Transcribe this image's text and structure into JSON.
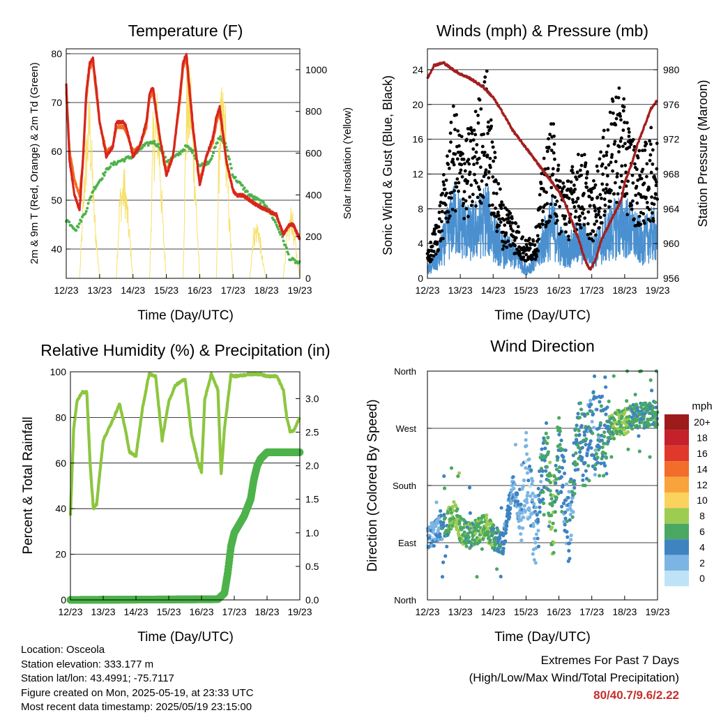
{
  "x_ticks": [
    "12/23",
    "13/23",
    "14/23",
    "15/23",
    "16/23",
    "17/23",
    "18/23",
    "19/23"
  ],
  "x_label": "Time (Day/UTC)",
  "colors": {
    "temp_2m": "#d7261e",
    "temp_9m": "#f26c21",
    "dewpoint": "#4db24a",
    "solar": "#f7e06a",
    "gust": "#000000",
    "wind": "#4a90d0",
    "pressure": "#a31f1f",
    "rh": "#8cc63f",
    "precip": "#4db24a",
    "extremes_text": "#c4302b"
  },
  "panels": {
    "temperature": {
      "title": "Temperature (F)",
      "y_left_label": "2m & 9m T (Red, Orange) & 2m Td (Green)",
      "y_right_label": "Solar Insolation (Yellow)",
      "y_left_ticks": [
        "40",
        "50",
        "60",
        "70",
        "80"
      ],
      "y_right_ticks": [
        "0",
        "200",
        "400",
        "600",
        "800",
        "1000"
      ]
    },
    "winds": {
      "title": "Winds (mph) & Pressure (mb)",
      "y_left_label": "Sonic Wind & Gust (Blue, Black)",
      "y_right_label": "Station Pressure (Maroon)",
      "y_left_ticks": [
        "0",
        "4",
        "8",
        "12",
        "16",
        "20",
        "24"
      ],
      "y_right_ticks": [
        "956",
        "960",
        "964",
        "968",
        "972",
        "976",
        "980"
      ]
    },
    "humidity": {
      "title": "Relative Humidity (%) & Precipitation (in)",
      "y_left_label": "Percent & Total Rainfall",
      "y_left_ticks": [
        "0",
        "20",
        "40",
        "60",
        "80",
        "100"
      ],
      "y_right_ticks": [
        "0.0",
        "0.5",
        "1.0",
        "1.5",
        "2.0",
        "2.5",
        "3.0"
      ]
    },
    "direction": {
      "title": "Wind Direction",
      "y_left_label": "Direction (Colored By Speed)",
      "y_left_ticks": [
        "North",
        "East",
        "South",
        "West",
        "North"
      ],
      "legend_title": "mph",
      "legend_labels": [
        "20+",
        "18",
        "16",
        "14",
        "12",
        "10",
        "8",
        "6",
        "4",
        "2",
        "0"
      ],
      "legend_colors": [
        "#9e1b1b",
        "#c4212a",
        "#e0392b",
        "#f26c2a",
        "#f9a33c",
        "#fbd25e",
        "#9dcc52",
        "#4aa863",
        "#3f83c1",
        "#7cb5e3",
        "#bfe3f6"
      ]
    }
  },
  "info": {
    "location": "Location: Osceola",
    "elevation": "Station elevation: 333.177 m",
    "latlon": "Station lat/lon: 43.4991; -75.7117",
    "created": "Figure created on Mon, 2025-05-19, at 23:33 UTC",
    "recent": "Most recent data timestamp: 2025/05/19 23:15:00"
  },
  "extremes": {
    "title": "Extremes For Past 7 Days",
    "subtitle": "(High/Low/Max Wind/Total Precipitation)",
    "values": "80/40.7/9.6/2.22"
  },
  "chart_data": [
    {
      "type": "line",
      "title": "Temperature (F)",
      "xlabel": "Time (Day/UTC)",
      "ylabel": "2m & 9m T (Red, Orange) & 2m Td (Green)",
      "ylabel_right": "Solar Insolation (Yellow)",
      "xlim": [
        12,
        19
      ],
      "ylim": [
        34,
        81
      ],
      "ylim_right": [
        0,
        1100
      ],
      "series": [
        {
          "name": "2m T",
          "x": [
            12.0,
            12.1,
            12.25,
            12.4,
            12.5,
            12.6,
            12.7,
            12.8,
            12.9,
            13.0,
            13.2,
            13.4,
            13.5,
            13.7,
            13.8,
            14.0,
            14.2,
            14.4,
            14.5,
            14.6,
            14.8,
            15.0,
            15.2,
            15.4,
            15.5,
            15.6,
            15.8,
            16.0,
            16.2,
            16.4,
            16.5,
            16.6,
            16.8,
            17.0,
            17.1,
            17.3,
            17.5,
            17.7,
            18.0,
            18.3,
            18.5,
            18.7,
            18.8,
            19.0
          ],
          "values": [
            74,
            58,
            51,
            48,
            58,
            72,
            78,
            79,
            73,
            66,
            59,
            61,
            66,
            66,
            65,
            59,
            61,
            66,
            72,
            73,
            63,
            55,
            59,
            71,
            78,
            80,
            65,
            53,
            59,
            63,
            67,
            69,
            58,
            52,
            51,
            51,
            50,
            49,
            48,
            47,
            43,
            45,
            45,
            42
          ]
        },
        {
          "name": "9m T",
          "x": [
            12.0,
            12.1,
            12.25,
            12.4,
            12.5,
            12.6,
            12.7,
            12.8,
            12.9,
            13.0,
            13.2,
            13.4,
            13.5,
            13.7,
            13.8,
            14.0,
            14.2,
            14.4,
            14.5,
            14.6,
            14.8,
            15.0,
            15.2,
            15.4,
            15.5,
            15.6,
            15.8,
            16.0,
            16.2,
            16.4,
            16.5,
            16.6,
            16.8,
            17.0,
            17.1,
            17.3,
            17.5,
            17.7,
            18.0,
            18.3,
            18.5,
            18.7,
            18.8,
            19.0
          ],
          "values": [
            72,
            60,
            54,
            51,
            58,
            71,
            77,
            78,
            72,
            66,
            60,
            61,
            65,
            65,
            64,
            60,
            61,
            65,
            71,
            72,
            63,
            56,
            59,
            70,
            77,
            79,
            64,
            54,
            59,
            62,
            66,
            68,
            58,
            52,
            51,
            51,
            50,
            49,
            48,
            47,
            43,
            45,
            45,
            42
          ]
        },
        {
          "name": "2m Td",
          "x": [
            12.0,
            12.3,
            12.6,
            12.8,
            13.0,
            13.3,
            13.6,
            14.0,
            14.3,
            14.6,
            14.8,
            15.0,
            15.3,
            15.6,
            15.8,
            16.0,
            16.3,
            16.6,
            16.8,
            17.0,
            17.5,
            18.0,
            18.3,
            18.5,
            18.7,
            19.0
          ],
          "values": [
            46,
            44,
            48,
            52,
            54,
            57,
            58,
            59,
            61,
            62,
            61,
            58,
            59,
            61,
            60,
            57,
            58,
            63,
            61,
            55,
            51,
            49,
            45,
            42,
            38,
            37
          ]
        },
        {
          "name": "Solar",
          "x": [
            12.0,
            12.4,
            12.55,
            12.7,
            12.85,
            13.0,
            13.5,
            13.6,
            13.75,
            13.9,
            14.0,
            14.5,
            14.6,
            14.75,
            14.9,
            15.0,
            15.5,
            15.6,
            15.75,
            15.9,
            16.0,
            16.5,
            16.6,
            16.75,
            16.9,
            17.0,
            17.5,
            17.6,
            17.75,
            17.9,
            18.0,
            18.5,
            18.6,
            18.75,
            18.9,
            19.0
          ],
          "values": [
            0,
            0,
            600,
            950,
            350,
            0,
            0,
            450,
            550,
            250,
            0,
            0,
            800,
            950,
            300,
            0,
            0,
            1000,
            1050,
            400,
            0,
            0,
            900,
            950,
            300,
            0,
            0,
            250,
            300,
            80,
            0,
            0,
            200,
            380,
            150,
            0
          ]
        }
      ]
    },
    {
      "type": "scatter",
      "title": "Winds (mph) & Pressure (mb)",
      "xlabel": "Time (Day/UTC)",
      "ylabel": "Sonic Wind & Gust (Blue, Black)",
      "ylabel_right": "Station Pressure (Maroon)",
      "xlim": [
        12,
        19
      ],
      "ylim": [
        0,
        26.4
      ],
      "ylim_right": [
        956,
        982.4
      ],
      "series": [
        {
          "name": "Gust",
          "x": [
            12.0,
            12.3,
            12.6,
            12.8,
            13.0,
            13.3,
            13.6,
            13.8,
            14.0,
            14.3,
            14.5,
            14.8,
            15.0,
            15.3,
            15.5,
            15.8,
            16.0,
            16.3,
            16.5,
            16.8,
            17.0,
            17.3,
            17.5,
            17.8,
            18.0,
            18.3,
            18.5,
            18.8,
            19.0
          ],
          "values": [
            2,
            5,
            10,
            14,
            12,
            12,
            15,
            17,
            11,
            6,
            6,
            4,
            3,
            4,
            9,
            13,
            9,
            8,
            10,
            10,
            7,
            11,
            13,
            16,
            14,
            11,
            10,
            12,
            11
          ]
        },
        {
          "name": "Wind",
          "x": [
            12.0,
            12.3,
            12.6,
            12.8,
            13.0,
            13.3,
            13.6,
            13.8,
            14.0,
            14.3,
            14.5,
            14.8,
            15.0,
            15.3,
            15.5,
            15.8,
            16.0,
            16.3,
            16.5,
            16.8,
            17.0,
            17.3,
            17.5,
            17.8,
            18.0,
            18.3,
            18.5,
            18.8,
            19.0
          ],
          "values": [
            1,
            2,
            5,
            7,
            6,
            5,
            6,
            7,
            5,
            3,
            3,
            2,
            1,
            2,
            4,
            6,
            4,
            3,
            4,
            4,
            3,
            4,
            5,
            6,
            6,
            5,
            4,
            5,
            5
          ]
        },
        {
          "name": "Pressure",
          "x": [
            12.0,
            12.2,
            12.5,
            12.7,
            13.0,
            13.3,
            13.7,
            14.0,
            14.3,
            14.6,
            15.0,
            15.3,
            15.6,
            15.8,
            16.0,
            16.2,
            16.4,
            16.6,
            16.8,
            16.95,
            17.1,
            17.3,
            17.5,
            17.7,
            17.9,
            18.0,
            18.2,
            18.4,
            18.6,
            18.8,
            19.0
          ],
          "values": [
            979,
            980.5,
            980.8,
            980.2,
            979.5,
            979,
            978,
            976.8,
            975,
            973,
            971,
            969.5,
            968,
            967,
            966,
            964.5,
            962.5,
            960.5,
            958,
            957,
            958,
            960.5,
            962,
            963.5,
            965,
            967,
            969,
            971.5,
            973.5,
            975.5,
            976.5
          ]
        }
      ]
    },
    {
      "type": "line",
      "title": "Relative Humidity (%) & Precipitation (in)",
      "xlabel": "Time (Day/UTC)",
      "ylabel": "Percent & Total Rainfall",
      "xlim": [
        12,
        19
      ],
      "ylim": [
        0,
        100
      ],
      "ylim_right": [
        0,
        3.4
      ],
      "series": [
        {
          "name": "RH",
          "x": [
            12.0,
            12.1,
            12.2,
            12.35,
            12.5,
            12.6,
            12.7,
            12.8,
            13.0,
            13.3,
            13.5,
            13.7,
            13.8,
            14.0,
            14.2,
            14.4,
            14.6,
            14.8,
            15.0,
            15.2,
            15.5,
            15.7,
            15.9,
            16.0,
            16.1,
            16.3,
            16.5,
            16.6,
            16.7,
            16.9,
            17.0,
            17.5,
            17.8,
            18.0,
            18.3,
            18.5,
            18.6,
            18.7,
            18.8,
            19.0
          ],
          "values": [
            37,
            75,
            87,
            91,
            91,
            60,
            40,
            42,
            70,
            79,
            86,
            73,
            65,
            63,
            84,
            99,
            98,
            70,
            87,
            94,
            97,
            72,
            60,
            56,
            88,
            99,
            92,
            55,
            75,
            99,
            98,
            99,
            99,
            98,
            98,
            92,
            80,
            74,
            74,
            80
          ]
        },
        {
          "name": "Precip",
          "x": [
            12.0,
            16.5,
            16.7,
            16.8,
            16.9,
            17.0,
            17.3,
            17.5,
            17.6,
            17.7,
            17.8,
            18.0,
            19.0
          ],
          "values": [
            0,
            0.01,
            0.1,
            0.4,
            0.8,
            1.0,
            1.25,
            1.5,
            1.8,
            2.0,
            2.1,
            2.2,
            2.2
          ]
        }
      ]
    },
    {
      "type": "scatter",
      "title": "Wind Direction",
      "xlabel": "Time (Day/UTC)",
      "ylabel": "Direction (Colored By Speed)",
      "xlim": [
        12,
        19
      ],
      "ylim": [
        0,
        360
      ],
      "series": [
        {
          "name": "Direction",
          "x": [
            12.0,
            12.3,
            12.6,
            12.8,
            13.0,
            13.3,
            13.6,
            13.8,
            14.0,
            14.3,
            14.6,
            14.8,
            15.0,
            15.3,
            15.6,
            15.8,
            16.0,
            16.3,
            16.6,
            16.8,
            17.0,
            17.2,
            17.4,
            17.6,
            17.8,
            18.0,
            18.3,
            18.6,
            18.8,
            19.0
          ],
          "values": [
            95,
            110,
            120,
            140,
            110,
            100,
            110,
            120,
            100,
            90,
            180,
            130,
            200,
            100,
            240,
            110,
            230,
            110,
            260,
            230,
            270,
            260,
            265,
            270,
            280,
            280,
            290,
            290,
            295,
            290
          ]
        }
      ]
    }
  ]
}
